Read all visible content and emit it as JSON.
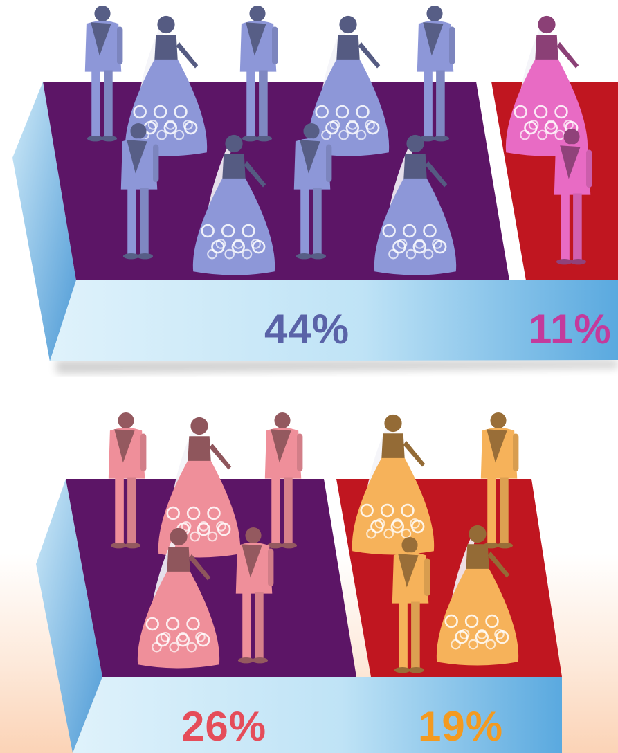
{
  "chart_data": [
    {
      "type": "bar",
      "segments": [
        {
          "value": 44,
          "label": "44%",
          "label_color": "#5a63a8",
          "floor_color": "#5c1566",
          "figure_color": "#8d97d8",
          "couples": 4
        },
        {
          "value": 11,
          "label": "11%",
          "label_color": "#c43a9c",
          "floor_color": "#c01620",
          "figure_color": "#e86bc4",
          "couples": 1
        }
      ]
    },
    {
      "type": "bar",
      "segments": [
        {
          "value": 26,
          "label": "26%",
          "label_color": "#e54d5a",
          "floor_color": "#5c1566",
          "figure_color": "#ef8f9a",
          "couples": 2.5
        },
        {
          "value": 19,
          "label": "19%",
          "label_color": "#f39a20",
          "floor_color": "#c01620",
          "figure_color": "#f6b25a",
          "couples": 2
        }
      ]
    }
  ]
}
